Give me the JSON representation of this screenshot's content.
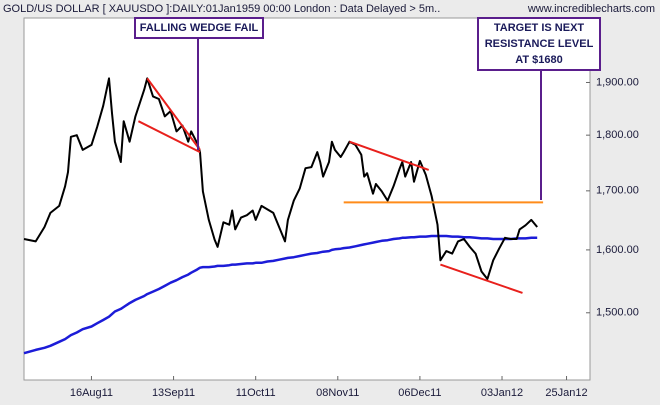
{
  "chart_data": {
    "type": "line",
    "title": "GOLD/US DOLLAR [ XAUUSDO ]:DAILY:01Jan1959 00:00 London : Data Delayed > 5m..",
    "source": "www.incrediblecharts.com",
    "x": [
      "2011-07-24",
      "2011-07-28",
      "2011-07-31",
      "2011-08-02",
      "2011-08-05",
      "2011-08-07",
      "2011-08-08",
      "2011-08-09",
      "2011-08-11",
      "2011-08-13",
      "2011-08-16",
      "2011-08-18",
      "2011-08-20",
      "2011-08-22",
      "2011-08-23",
      "2011-08-24",
      "2011-08-26",
      "2011-08-27",
      "2011-08-29",
      "2011-08-31",
      "2011-09-03",
      "2011-09-04",
      "2011-09-06",
      "2011-09-08",
      "2011-09-10",
      "2011-09-12",
      "2011-09-14",
      "2011-09-16",
      "2011-09-18",
      "2011-09-19",
      "2011-09-21",
      "2011-09-22",
      "2011-09-23",
      "2011-09-25",
      "2011-09-27",
      "2011-09-28",
      "2011-09-30",
      "2011-10-02",
      "2011-10-03",
      "2011-10-04",
      "2011-10-06",
      "2011-10-08",
      "2011-10-10",
      "2011-10-11",
      "2011-10-13",
      "2011-10-15",
      "2011-10-17",
      "2011-10-19",
      "2011-10-21",
      "2011-10-22",
      "2011-10-24",
      "2011-10-26",
      "2011-10-28",
      "2011-10-30",
      "2011-11-01",
      "2011-11-02",
      "2011-11-03",
      "2011-11-05",
      "2011-11-06",
      "2011-11-07",
      "2011-11-09",
      "2011-11-10",
      "2011-11-12",
      "2011-11-14",
      "2011-11-16",
      "2011-11-17",
      "2011-11-18",
      "2011-11-20",
      "2011-11-21",
      "2011-11-23",
      "2011-11-25",
      "2011-11-27",
      "2011-11-29",
      "2011-11-30",
      "2011-12-01",
      "2011-12-03",
      "2011-12-04",
      "2011-12-06",
      "2011-12-08",
      "2011-12-10",
      "2011-12-12",
      "2011-12-13",
      "2011-12-15",
      "2011-12-17",
      "2011-12-19",
      "2011-12-21",
      "2011-12-23",
      "2011-12-25",
      "2011-12-27",
      "2011-12-29",
      "2011-12-31",
      "2012-01-02",
      "2012-01-04",
      "2012-01-06",
      "2012-01-08",
      "2012-01-09",
      "2012-01-11",
      "2012-01-13",
      "2012-01-15"
    ],
    "series": [
      {
        "color": "#000000",
        "values": [
          1618,
          1614,
          1638,
          1662,
          1674,
          1708,
          1733,
          1797,
          1800,
          1773,
          1782,
          1816,
          1855,
          1908,
          1841,
          1788,
          1751,
          1826,
          1788,
          1835,
          1886,
          1908,
          1873,
          1868,
          1835,
          1845,
          1807,
          1818,
          1788,
          1807,
          1786,
          1769,
          1699,
          1650,
          1617,
          1605,
          1646,
          1642,
          1666,
          1634,
          1654,
          1658,
          1666,
          1650,
          1674,
          1668,
          1662,
          1638,
          1614,
          1650,
          1683,
          1704,
          1740,
          1742,
          1769,
          1751,
          1725,
          1751,
          1788,
          1773,
          1760,
          1769,
          1788,
          1782,
          1764,
          1725,
          1731,
          1695,
          1712,
          1699,
          1683,
          1708,
          1738,
          1751,
          1725,
          1751,
          1716,
          1753,
          1728,
          1691,
          1642,
          1583,
          1598,
          1594,
          1614,
          1618,
          1605,
          1594,
          1565,
          1553,
          1583,
          1602,
          1620,
          1618,
          1618,
          1634,
          1641,
          1650,
          1638
        ]
      },
      {
        "color": "#1c1cd8",
        "values": [
          1439,
          1444,
          1447,
          1450,
          1456,
          1460,
          1463,
          1466,
          1470,
          1475,
          1479,
          1484,
          1489,
          1494,
          1498,
          1502,
          1506,
          1509,
          1515,
          1520,
          1526,
          1529,
          1533,
          1537,
          1542,
          1547,
          1551,
          1556,
          1560,
          1563,
          1568,
          1571,
          1572,
          1572,
          1573,
          1574,
          1574,
          1575,
          1576,
          1576,
          1577,
          1578,
          1578,
          1579,
          1579,
          1581,
          1582,
          1584,
          1586,
          1587,
          1588,
          1590,
          1592,
          1594,
          1595,
          1596,
          1597,
          1598,
          1600,
          1601,
          1602,
          1603,
          1604,
          1606,
          1608,
          1609,
          1610,
          1612,
          1613,
          1615,
          1616,
          1618,
          1619,
          1620,
          1620,
          1621,
          1621,
          1622,
          1622,
          1623,
          1623,
          1623,
          1623,
          1622,
          1622,
          1621,
          1621,
          1620,
          1619,
          1619,
          1618,
          1618,
          1618,
          1618,
          1619,
          1619,
          1619,
          1620,
          1620
        ]
      }
    ],
    "trend_lines": [
      {
        "color": "#e8201c",
        "x": [
          "2011-09-04",
          "2011-09-22"
        ],
        "values": [
          1908,
          1773
        ]
      },
      {
        "color": "#e8201c",
        "x": [
          "2011-09-01",
          "2011-09-22"
        ],
        "values": [
          1826,
          1769
        ]
      },
      {
        "color": "#e8201c",
        "x": [
          "2011-11-12",
          "2011-12-09"
        ],
        "values": [
          1788,
          1737
        ]
      },
      {
        "color": "#e8201c",
        "x": [
          "2011-12-13",
          "2012-01-10"
        ],
        "values": [
          1576,
          1531
        ]
      },
      {
        "color": "#ff8c1a",
        "x": [
          "2011-11-10",
          "2012-01-17"
        ],
        "values": [
          1680,
          1680
        ]
      }
    ],
    "annotations": [
      {
        "lines": [
          "FALLING WEDGE FAIL"
        ]
      },
      {
        "lines": [
          "TARGET IS NEXT",
          "RESISTANCE LEVEL",
          "AT $1680"
        ]
      }
    ],
    "xlim": [
      "2011-07-24",
      "2012-02-02"
    ],
    "xticks": [
      {
        "value": "2011-08-16",
        "label": "16Aug11"
      },
      {
        "value": "2011-09-13",
        "label": "13Sep11"
      },
      {
        "value": "2011-10-11",
        "label": "11Oct11"
      },
      {
        "value": "2011-11-08",
        "label": "08Nov11"
      },
      {
        "value": "2011-12-06",
        "label": "06Dec11"
      },
      {
        "value": "2012-01-03",
        "label": "03Jan12"
      },
      {
        "value": "2012-01-25",
        "label": "25Jan12"
      }
    ],
    "ylim": [
      1400,
      2030
    ],
    "yticks": [
      {
        "value": 1500,
        "label": "1,500.00"
      },
      {
        "value": 1600,
        "label": "1,600.00"
      },
      {
        "value": 1700,
        "label": "1,700.00"
      },
      {
        "value": 1800,
        "label": "1,800.00"
      },
      {
        "value": 1900,
        "label": "1,900.00"
      }
    ],
    "log_scale": true,
    "grid": false
  }
}
